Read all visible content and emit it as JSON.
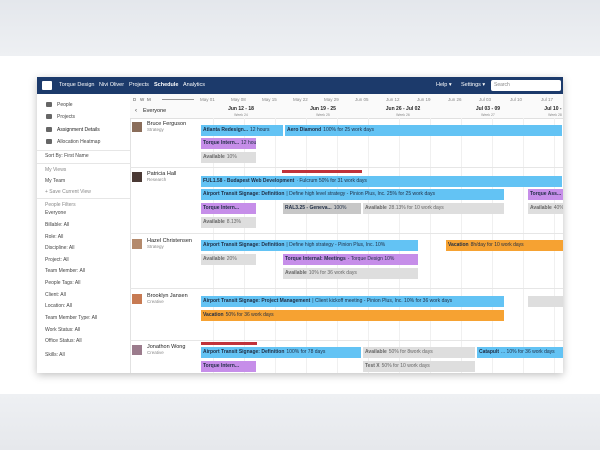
{
  "nav": {
    "brand": "Torque Design",
    "user": "Nivi Oliver",
    "links": [
      "Projects",
      "Schedule",
      "Analytics"
    ],
    "help": "Help ▾",
    "settings": "Settings ▾",
    "search": "Search"
  },
  "sidebar": {
    "views": [
      "People",
      "Projects",
      "Assignment Details",
      "Allocation Heatmap"
    ],
    "sort": "Sort By: First Name",
    "my_views_title": "My Views",
    "my_views": [
      "My Team",
      "+ Save Current View"
    ],
    "filters_title": "People Filters",
    "filters": [
      "Everyone",
      "Billable: All",
      "Role: All",
      "Discipline: All",
      "Project: All",
      "Team Member: All",
      "People Tags: All",
      "Client: All",
      "Location: All",
      "Team Member Type: All",
      "Work Status: All",
      "Office Status: All",
      "Skills: All"
    ]
  },
  "timeline": {
    "zoom": [
      "D",
      "W",
      "M"
    ],
    "group": "Everyone",
    "months": [
      "May 01",
      "May 08",
      "May 15",
      "May 22",
      "May 29",
      "Jun 05",
      "Jun 12",
      "Jun 19",
      "Jun 26",
      "Jul 03",
      "Jul 10",
      "Jul 17"
    ],
    "weeks": [
      {
        "range": "Jun 12 - 18",
        "week": "Week 24"
      },
      {
        "range": "Jun 19 - 25",
        "week": "Week 25"
      },
      {
        "range": "Jun 26 - Jul 02",
        "week": "Week 26"
      },
      {
        "range": "Jul 03 - 09",
        "week": "Week 27"
      },
      {
        "range": "Jul 10 - 1",
        "week": "Week 28"
      }
    ]
  },
  "people": [
    {
      "name": "Bruce Ferguson",
      "role": "Strategy",
      "bars": [
        {
          "title": "Atlanta Redesign...",
          "detail": "12 hours"
        },
        {
          "title": "Aero Diamond",
          "detail": "100% for 25 work days"
        },
        {
          "title": "Torque Intern...",
          "detail": "12 hours"
        },
        {
          "title": "Available",
          "detail": "10%"
        }
      ]
    },
    {
      "name": "Patricia Hall",
      "role": "Research",
      "bars": [
        {
          "title": "FUL1.58 - Budapest Web Development",
          "detail": "· Fulcrum 50% for 31 work days"
        },
        {
          "title": "Airport Transit Signage: Definition",
          "detail": "| Define high level strategy - Pinion Plus, Inc. 25% for 25 work days"
        },
        {
          "title": "Torque Intern..."
        },
        {
          "title": "RAL3.25 - Geneva...",
          "detail": "100%"
        },
        {
          "title": "Available",
          "detail": "28.13% for 10 work days"
        },
        {
          "title": "Available",
          "detail": "8.13%"
        },
        {
          "title": "Torque Ass..."
        },
        {
          "title": "Available",
          "detail": "40%"
        }
      ]
    },
    {
      "name": "Hazel Christensen",
      "role": "Strategy",
      "bars": [
        {
          "title": "Airport Transit Signage: Definition",
          "detail": "| Define high strategy - Pinion Plus, Inc. 10%"
        },
        {
          "title": "Vacation",
          "detail": "8h/day for 10 work days"
        },
        {
          "title": "Available",
          "detail": "20%"
        },
        {
          "title": "Torque Internal: Meetings",
          "detail": "- Torque Design 10%"
        },
        {
          "title": "Available",
          "detail": "10% for 36 work days"
        }
      ]
    },
    {
      "name": "Brooklyn Jansen",
      "role": "Creative",
      "bars": [
        {
          "title": "Airport Transit Signage: Project Management",
          "detail": "| Client kickoff meeting - Pinion Plus, Inc. 10% for 36 work days"
        },
        {
          "title": "Vacation",
          "detail": "50% for 36 work days"
        }
      ]
    },
    {
      "name": "Jonathon Wong",
      "role": "Creative",
      "bars": [
        {
          "title": "Airport Transit Signage: Definition",
          "detail": "100% for 78 days"
        },
        {
          "title": "Available",
          "detail": "50% for 8work days"
        },
        {
          "title": "Catapult",
          "detail": "... 10% for 36 work days"
        },
        {
          "title": "Torque Intern..."
        },
        {
          "title": "Test X",
          "detail": "50% for 10 work days"
        }
      ]
    }
  ]
}
